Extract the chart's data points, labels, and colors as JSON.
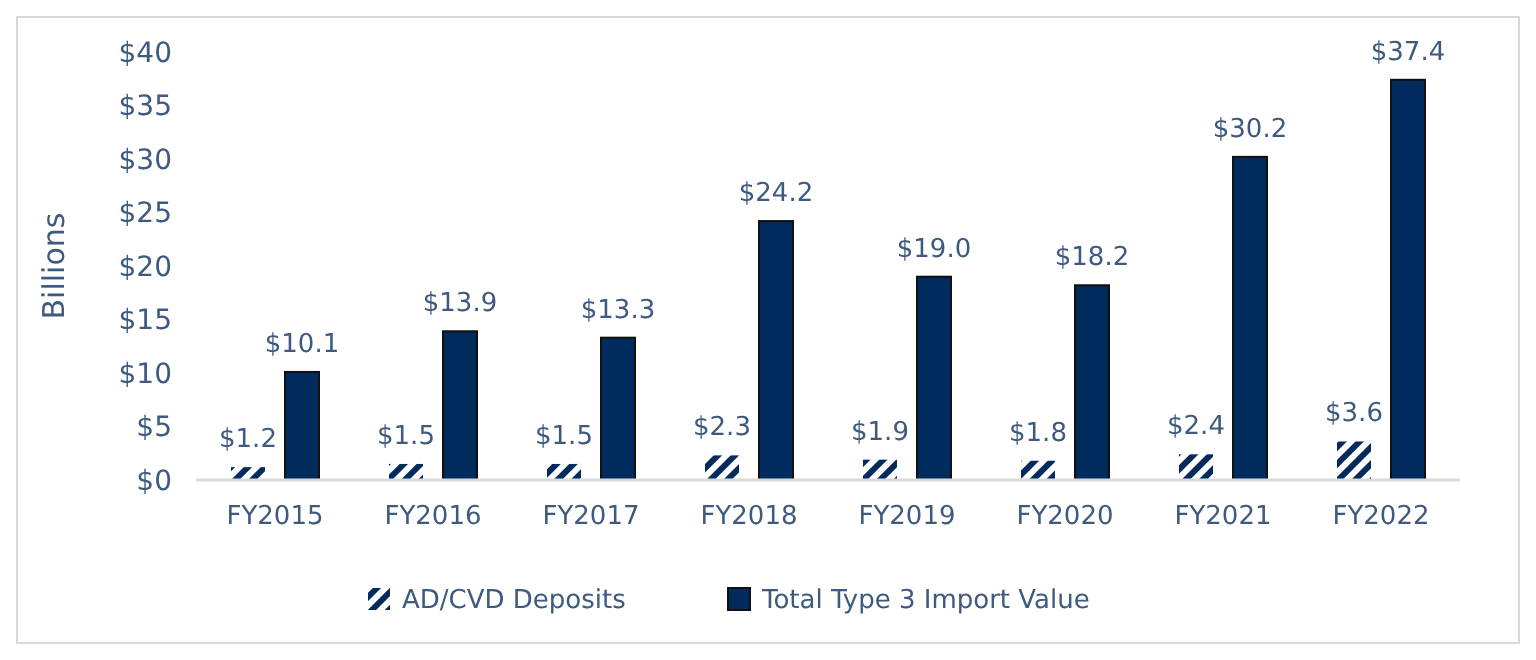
{
  "chart_data": {
    "type": "bar",
    "ylabel": "Billions",
    "categories": [
      "FY2015",
      "FY2016",
      "FY2017",
      "FY2018",
      "FY2019",
      "FY2020",
      "FY2021",
      "FY2022"
    ],
    "series": [
      {
        "name": "AD/CVD Deposits",
        "color": "#002b5c",
        "values": [
          1.2,
          1.5,
          1.5,
          2.3,
          1.9,
          1.8,
          2.4,
          3.6
        ],
        "value_labels": [
          "$1.2",
          "$1.5",
          "$1.5",
          "$2.3",
          "$1.9",
          "$1.8",
          "$2.4",
          "$3.6"
        ]
      },
      {
        "name": "Total Type 3 Import Value",
        "color": "#002b5c",
        "values": [
          10.1,
          13.9,
          13.3,
          24.2,
          19.0,
          18.2,
          30.2,
          37.4
        ],
        "value_labels": [
          "$10.1",
          "$13.9",
          "$13.3",
          "$24.2",
          "$19.0",
          "$18.2",
          "$30.2",
          "$37.4"
        ]
      }
    ],
    "ylim": [
      0,
      40
    ],
    "yticks": [
      {
        "value": 0,
        "label": "$0"
      },
      {
        "value": 5,
        "label": "$5"
      },
      {
        "value": 10,
        "label": "$10"
      },
      {
        "value": 15,
        "label": "$15"
      },
      {
        "value": 20,
        "label": "$20"
      },
      {
        "value": 25,
        "label": "$25"
      },
      {
        "value": 30,
        "label": "$30"
      },
      {
        "value": 35,
        "label": "$35"
      },
      {
        "value": 40,
        "label": "$40"
      }
    ],
    "grid": false,
    "legend": "bottom"
  }
}
